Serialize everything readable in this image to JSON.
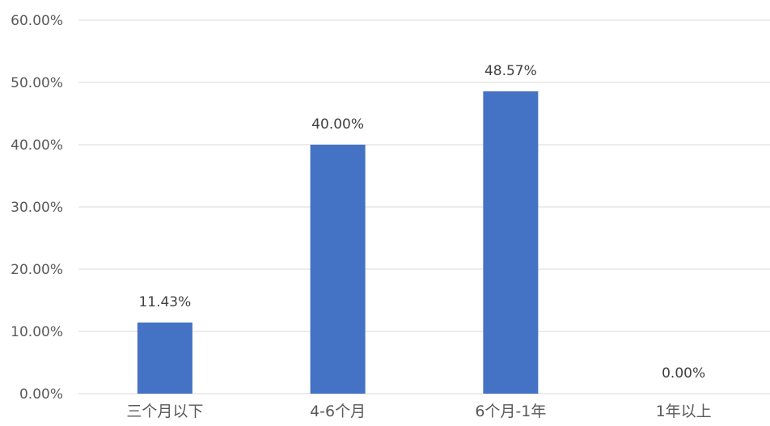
{
  "chart_data": {
    "type": "bar",
    "categories": [
      "三个月以下",
      "4-6个月",
      "6个月-1年",
      "1年以上"
    ],
    "values": [
      11.43,
      40.0,
      48.57,
      0.0
    ],
    "data_labels": [
      "11.43%",
      "40.00%",
      "48.57%",
      "0.00%"
    ],
    "ylim": [
      0,
      60
    ],
    "yticks": [
      0,
      10,
      20,
      30,
      40,
      50,
      60
    ],
    "ytick_labels": [
      "0.00%",
      "10.00%",
      "20.00%",
      "30.00%",
      "40.00%",
      "50.00%",
      "60.00%"
    ],
    "grid": true,
    "legend": false,
    "bar_color": "#4472C4"
  }
}
